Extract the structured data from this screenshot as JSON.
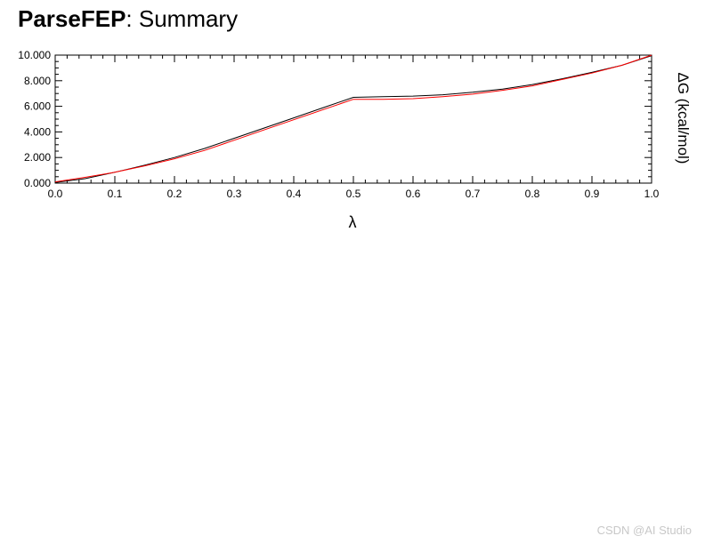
{
  "header": {
    "title_strong": "ParseFEP",
    "title_rest": ": Summary"
  },
  "watermark": "CSDN @AI Studio",
  "colors": {
    "series_forward": "#000000",
    "series_backward": "#ff0000",
    "axis": "#000000"
  },
  "chart_data": {
    "type": "line",
    "title": "",
    "xlabel": "λ",
    "ylabel": "ΔG (kcal/mol)",
    "xlim": [
      0.0,
      1.0
    ],
    "ylim": [
      0.0,
      10.0
    ],
    "x_ticks": [
      0.0,
      0.1,
      0.2,
      0.3,
      0.4,
      0.5,
      0.6,
      0.7,
      0.8,
      0.9,
      1.0
    ],
    "x_tick_labels": [
      "0.0",
      "0.1",
      "0.2",
      "0.3",
      "0.4",
      "0.5",
      "0.6",
      "0.7",
      "0.8",
      "0.9",
      "1.0"
    ],
    "y_ticks": [
      0,
      2,
      4,
      6,
      8,
      10
    ],
    "y_tick_labels": [
      "0.000",
      "2.000",
      "4.000",
      "6.000",
      "8.000",
      "10.000"
    ],
    "ylabel_position": "right",
    "grid": false,
    "series": [
      {
        "color": "#000000",
        "x": [
          0.0,
          0.05,
          0.1,
          0.15,
          0.2,
          0.25,
          0.3,
          0.35,
          0.4,
          0.45,
          0.5,
          0.55,
          0.6,
          0.65,
          0.7,
          0.75,
          0.8,
          0.85,
          0.9,
          0.95,
          1.0
        ],
        "y": [
          0.05,
          0.35,
          0.85,
          1.4,
          2.0,
          2.7,
          3.5,
          4.3,
          5.1,
          5.9,
          6.7,
          6.75,
          6.8,
          6.9,
          7.1,
          7.35,
          7.7,
          8.15,
          8.65,
          9.2,
          9.95
        ]
      },
      {
        "color": "#ff0000",
        "x": [
          0.0,
          0.05,
          0.1,
          0.15,
          0.2,
          0.25,
          0.3,
          0.35,
          0.4,
          0.45,
          0.5,
          0.55,
          0.6,
          0.65,
          0.7,
          0.75,
          0.8,
          0.85,
          0.9,
          0.95,
          1.0
        ],
        "y": [
          0.1,
          0.45,
          0.85,
          1.35,
          1.9,
          2.55,
          3.35,
          4.15,
          4.95,
          5.75,
          6.55,
          6.55,
          6.6,
          6.75,
          6.95,
          7.25,
          7.6,
          8.1,
          8.6,
          9.2,
          10.0
        ]
      }
    ]
  }
}
